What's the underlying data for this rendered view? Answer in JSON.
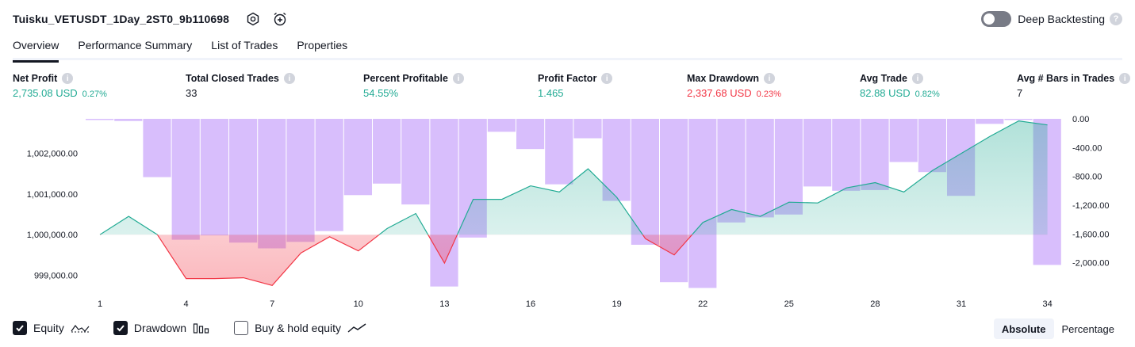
{
  "strategy_title": "Tuisku_VETUSDT_1Day_2ST0_9b110698",
  "icons": {
    "settings": "gear-icon",
    "alert": "alarm-clock-plus-icon",
    "help": "question-icon",
    "info": "info-icon"
  },
  "deep_backtesting": {
    "label": "Deep Backtesting",
    "enabled": false
  },
  "tabs": [
    {
      "label": "Overview",
      "active": true
    },
    {
      "label": "Performance Summary",
      "active": false
    },
    {
      "label": "List of Trades",
      "active": false
    },
    {
      "label": "Properties",
      "active": false
    }
  ],
  "metrics": [
    {
      "label": "Net Profit",
      "value": "2,735.08 USD",
      "pct": "0.27%",
      "color": "green"
    },
    {
      "label": "Total Closed Trades",
      "value": "33",
      "pct": "",
      "color": "dark"
    },
    {
      "label": "Percent Profitable",
      "value": "54.55%",
      "pct": "",
      "color": "green"
    },
    {
      "label": "Profit Factor",
      "value": "1.465",
      "pct": "",
      "color": "green"
    },
    {
      "label": "Max Drawdown",
      "value": "2,337.68 USD",
      "pct": "0.23%",
      "color": "red"
    },
    {
      "label": "Avg Trade",
      "value": "82.88 USD",
      "pct": "0.82%",
      "color": "green"
    },
    {
      "label": "Avg # Bars in Trades",
      "value": "7",
      "pct": "",
      "color": "dark"
    }
  ],
  "colors": {
    "green": "#22ab94",
    "red": "#f23645",
    "drawdown": "#d1b3fb",
    "equity_fill": "#cdeee4",
    "loss_fill": "#fbc5c9"
  },
  "chart_data": {
    "type": "line",
    "equity_baseline": 1000000,
    "left_axis": {
      "ticks": [
        "1,002,000.00",
        "1,001,000.00",
        "1,000,000.00",
        "999,000.00"
      ],
      "tick_values": [
        1002000,
        1001000,
        1000000,
        999000
      ],
      "range": [
        998600,
        1002850
      ]
    },
    "right_axis": {
      "ticks": [
        "0.00",
        "-400.00",
        "-800.00",
        "-1,200.00",
        "-1,600.00",
        "-2,000.00"
      ],
      "tick_values": [
        0,
        -400,
        -800,
        -1200,
        -1600,
        -2000
      ],
      "range": [
        -2400,
        0
      ]
    },
    "x_ticks": [
      "1",
      "4",
      "7",
      "10",
      "13",
      "16",
      "19",
      "22",
      "25",
      "28",
      "31",
      "34"
    ],
    "x": [
      1,
      2,
      3,
      4,
      5,
      6,
      7,
      8,
      9,
      10,
      11,
      12,
      13,
      14,
      15,
      16,
      17,
      18,
      19,
      20,
      21,
      22,
      23,
      24,
      25,
      26,
      27,
      28,
      29,
      30,
      31,
      32,
      33,
      34
    ],
    "series": [
      {
        "name": "Equity",
        "values": [
          1000000,
          1000450,
          1000000,
          998920,
          998920,
          998940,
          998750,
          999550,
          999950,
          999600,
          1000150,
          1000520,
          999300,
          1000870,
          1000870,
          1001200,
          1001050,
          1001620,
          1000920,
          999900,
          999500,
          1000300,
          1000620,
          1000450,
          1000800,
          1000780,
          1001150,
          1001280,
          1001050,
          1001580,
          1002000,
          1002420,
          1002800,
          1002700
        ]
      },
      {
        "name": "Drawdown",
        "values": [
          -10,
          -30,
          -810,
          -1680,
          -1620,
          -1720,
          -1800,
          -1710,
          -1560,
          -1060,
          -900,
          -1190,
          -2330,
          -1650,
          -180,
          -420,
          -910,
          -270,
          -1140,
          -1750,
          -2270,
          -2350,
          -1440,
          -1370,
          -1330,
          -940,
          -1000,
          -990,
          -600,
          -740,
          -1070,
          -70,
          0,
          -2030
        ]
      }
    ]
  },
  "legend": [
    {
      "label": "Equity",
      "checked": true,
      "icon": "equity-line-icon"
    },
    {
      "label": "Drawdown",
      "checked": true,
      "icon": "drawdown-bars-icon"
    },
    {
      "label": "Buy & hold equity",
      "checked": false,
      "icon": "buy-hold-line-icon"
    }
  ],
  "modes": [
    {
      "label": "Absolute",
      "active": true
    },
    {
      "label": "Percentage",
      "active": false
    }
  ]
}
